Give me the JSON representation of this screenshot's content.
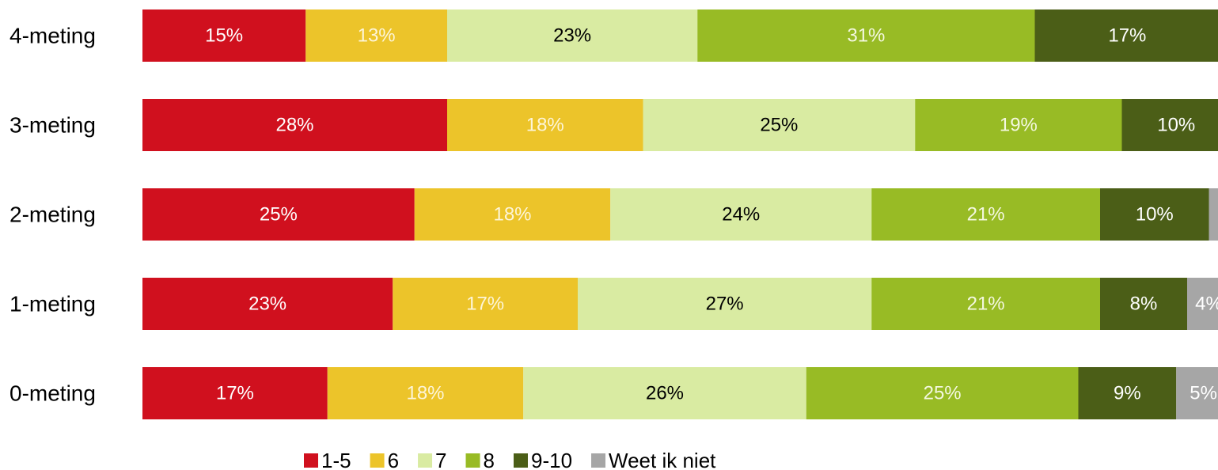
{
  "chart_data": {
    "type": "stacked_barh",
    "categories": [
      "4-meting",
      "3-meting",
      "2-meting",
      "1-meting",
      "0-meting"
    ],
    "xlim": [
      0,
      100
    ],
    "series": [
      {
        "name": "1-5",
        "color": "#d0101e",
        "label_color": "#ffffff",
        "values": [
          15,
          28,
          25,
          23,
          17
        ],
        "value_labels": [
          "15%",
          "28%",
          "25%",
          "23%",
          "17%"
        ]
      },
      {
        "name": "6",
        "color": "#ecc42a",
        "label_color": "#fdf5d8",
        "values": [
          13,
          18,
          18,
          17,
          18
        ],
        "value_labels": [
          "13%",
          "18%",
          "18%",
          "17%",
          "18%"
        ]
      },
      {
        "name": "7",
        "color": "#d9eba2",
        "label_color": "#000000",
        "values": [
          23,
          25,
          24,
          27,
          26
        ],
        "value_labels": [
          "23%",
          "25%",
          "24%",
          "27%",
          "26%"
        ]
      },
      {
        "name": "8",
        "color": "#98bb25",
        "label_color": "#f4f8e0",
        "values": [
          31,
          19,
          21,
          21,
          25
        ],
        "value_labels": [
          "31%",
          "19%",
          "21%",
          "21%",
          "25%"
        ]
      },
      {
        "name": "9-10",
        "color": "#4b5e17",
        "label_color": "#ffffff",
        "values": [
          17,
          10,
          10,
          8,
          9
        ],
        "value_labels": [
          "17%",
          "10%",
          "10%",
          "8%",
          "9%"
        ]
      },
      {
        "name": "Weet ik niet",
        "color": "#a6a6a6",
        "label_color": "#ffffff",
        "values": [
          null,
          null,
          2,
          4,
          5
        ],
        "value_labels": [
          null,
          null,
          null,
          "4%",
          "5%"
        ]
      }
    ],
    "legend": "bottom"
  }
}
